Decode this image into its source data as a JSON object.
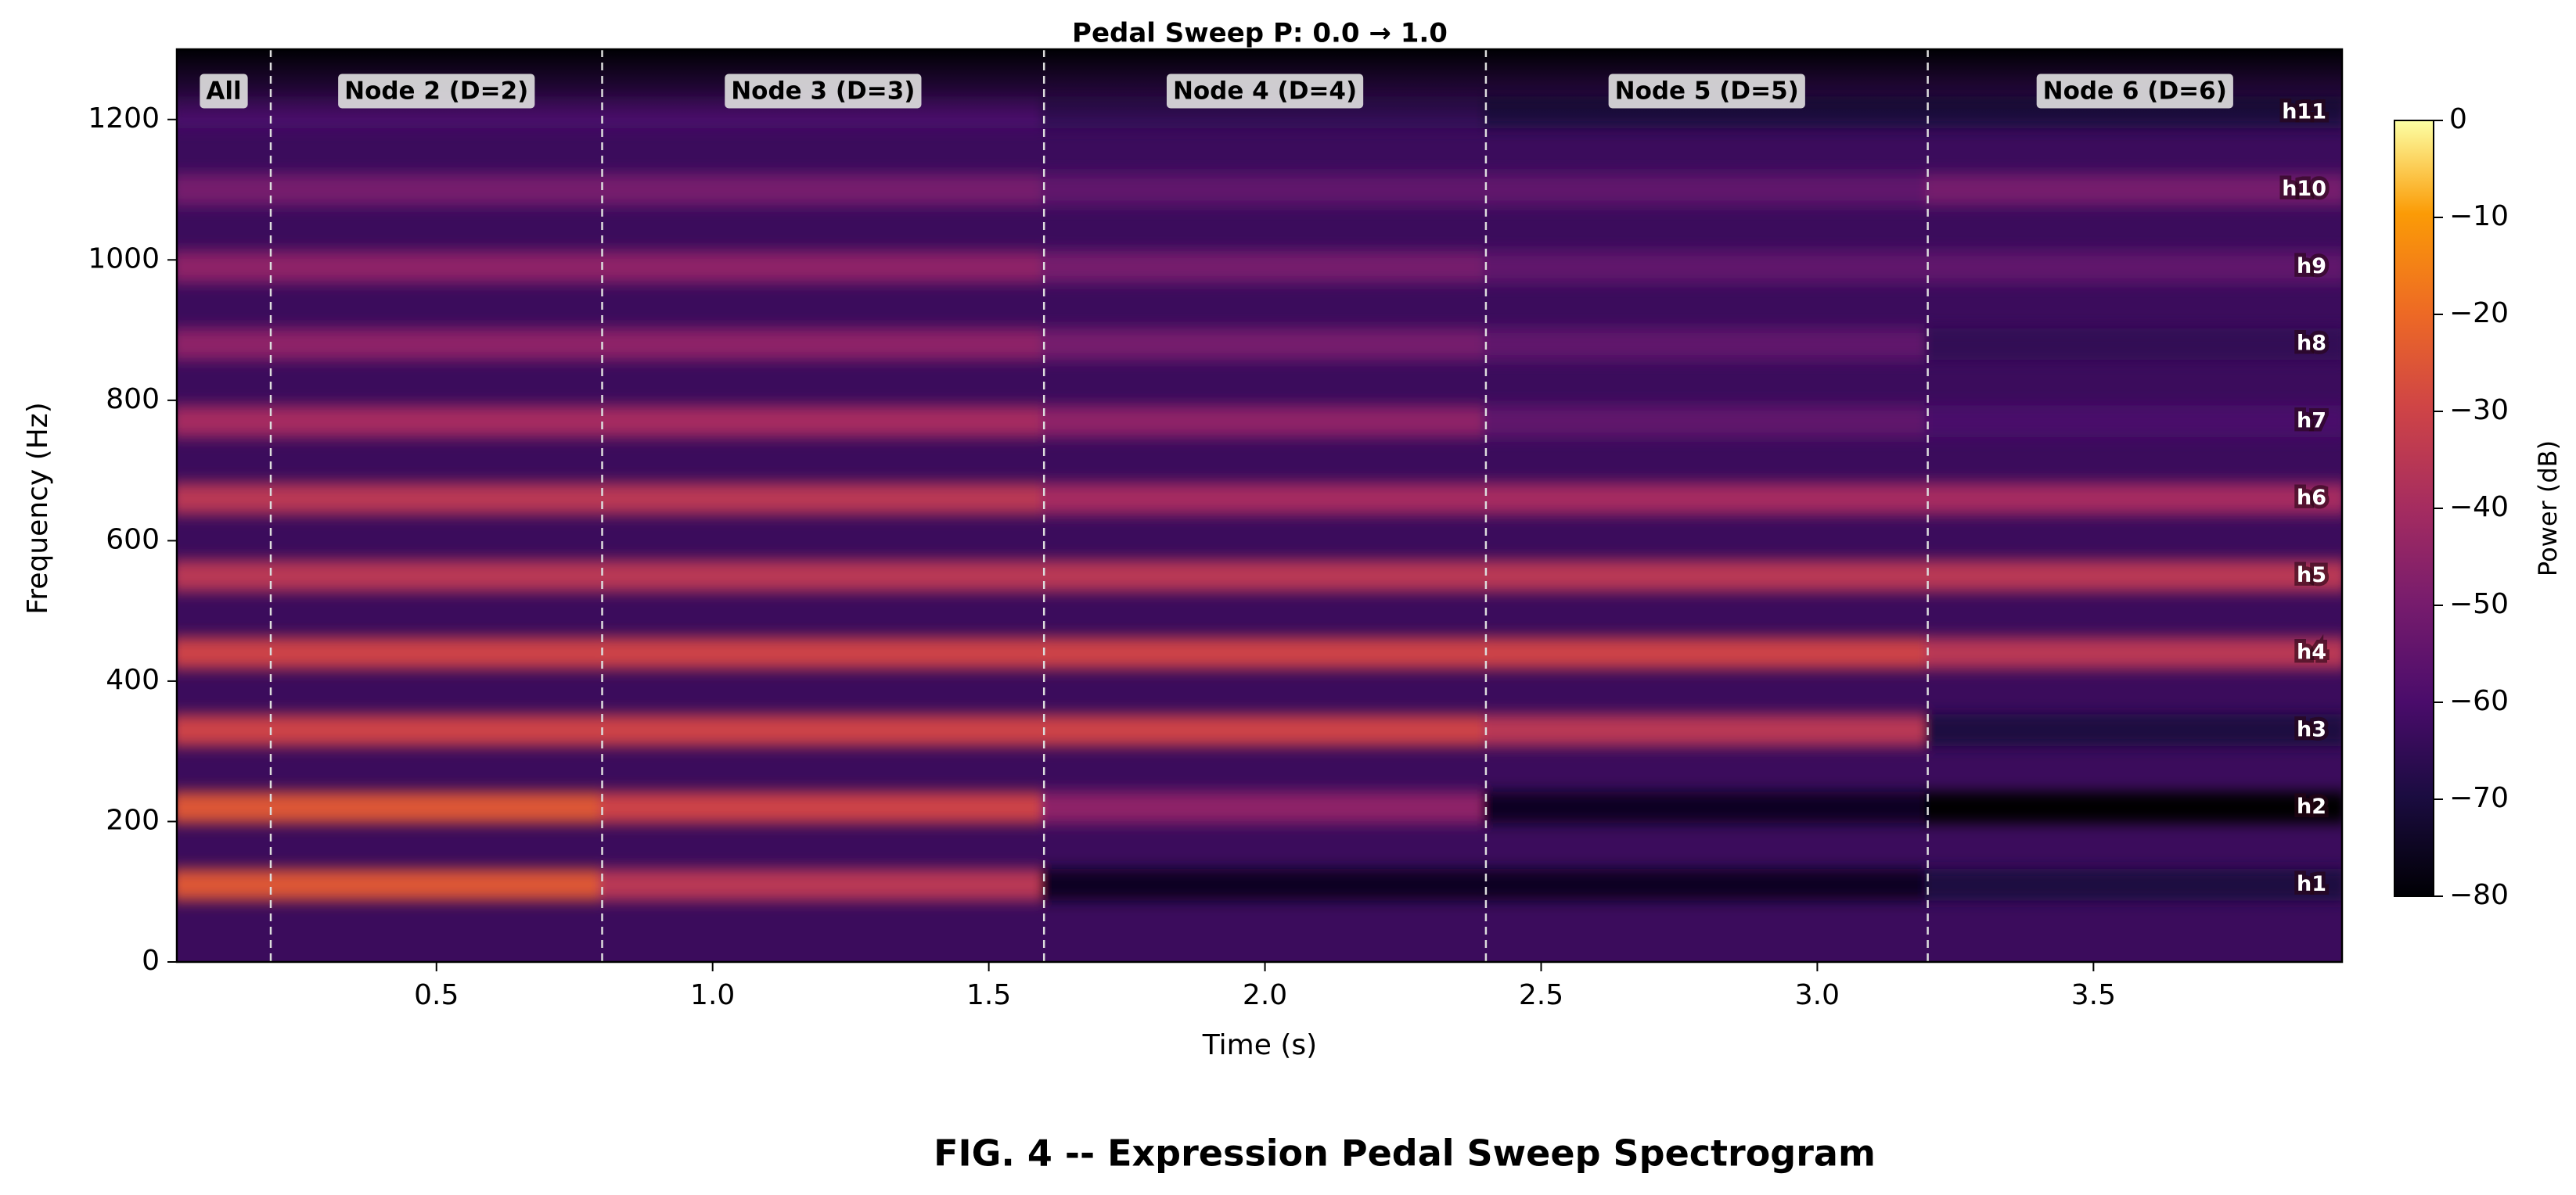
{
  "chart_data": {
    "type": "spectrogram",
    "title": "Pedal Sweep P: 0.0 → 1.0",
    "caption": "FIG. 4 -- Expression Pedal Sweep Spectrogram",
    "x_label": "Time (s)",
    "y_label": "Frequency (Hz)",
    "colorbar_label": "Power (dB)",
    "colormap": "inferno",
    "xlim": [
      0.03,
      3.95
    ],
    "xticks": [
      0.5,
      {
        "value": 1,
        "label": "1.0"
      },
      1.5,
      {
        "value": 2,
        "label": "2.0"
      },
      2.5,
      {
        "value": 3,
        "label": "3.0"
      },
      3.5
    ],
    "ylim": [
      0,
      1300
    ],
    "yticks": [
      0,
      200,
      400,
      600,
      800,
      1000,
      1200
    ],
    "clim": [
      -80,
      0
    ],
    "cticks": [
      0,
      {
        "value": -10,
        "label": "−10"
      },
      {
        "value": -20,
        "label": "−20"
      },
      {
        "value": -30,
        "label": "−30"
      },
      {
        "value": -40,
        "label": "−40"
      },
      {
        "value": -50,
        "label": "−50"
      },
      {
        "value": -60,
        "label": "−60"
      },
      {
        "value": -70,
        "label": "−70"
      },
      {
        "value": -80,
        "label": "−80"
      }
    ],
    "categories": [
      "All",
      "Node 2 (D=2)",
      "Node 3 (D=3)",
      "Node 4 (D=4)",
      "Node 5 (D=5)",
      "Node 6 (D=6)"
    ],
    "boundaries": [
      0.2,
      0.8,
      1.6,
      2.4,
      3.2
    ],
    "series": [
      {
        "name": "h1",
        "frequency": 110,
        "values": [
          -25,
          -25,
          -35,
          -75,
          -75,
          -70
        ]
      },
      {
        "name": "h2",
        "frequency": 220,
        "values": [
          -25,
          -25,
          -30,
          -45,
          -75,
          -80
        ]
      },
      {
        "name": "h3",
        "frequency": 330,
        "values": [
          -30,
          -30,
          -30,
          -30,
          -35,
          -70
        ]
      },
      {
        "name": "h4",
        "frequency": 440,
        "values": [
          -30,
          -30,
          -30,
          -30,
          -30,
          -35
        ]
      },
      {
        "name": "h5",
        "frequency": 550,
        "values": [
          -35,
          -35,
          -35,
          -35,
          -35,
          -35
        ]
      },
      {
        "name": "h6",
        "frequency": 660,
        "values": [
          -35,
          -35,
          -35,
          -40,
          -40,
          -40
        ]
      },
      {
        "name": "h7",
        "frequency": 770,
        "values": [
          -40,
          -40,
          -40,
          -45,
          -55,
          -60
        ]
      },
      {
        "name": "h8",
        "frequency": 880,
        "values": [
          -45,
          -45,
          -45,
          -50,
          -55,
          -65
        ]
      },
      {
        "name": "h9",
        "frequency": 990,
        "values": [
          -45,
          -45,
          -45,
          -50,
          -55,
          -55
        ]
      },
      {
        "name": "h10",
        "frequency": 1100,
        "values": [
          -50,
          -50,
          -50,
          -55,
          -55,
          -50
        ]
      },
      {
        "name": "h11",
        "frequency": 1210,
        "values": [
          -60,
          -60,
          -60,
          -65,
          -70,
          -70
        ]
      }
    ]
  }
}
